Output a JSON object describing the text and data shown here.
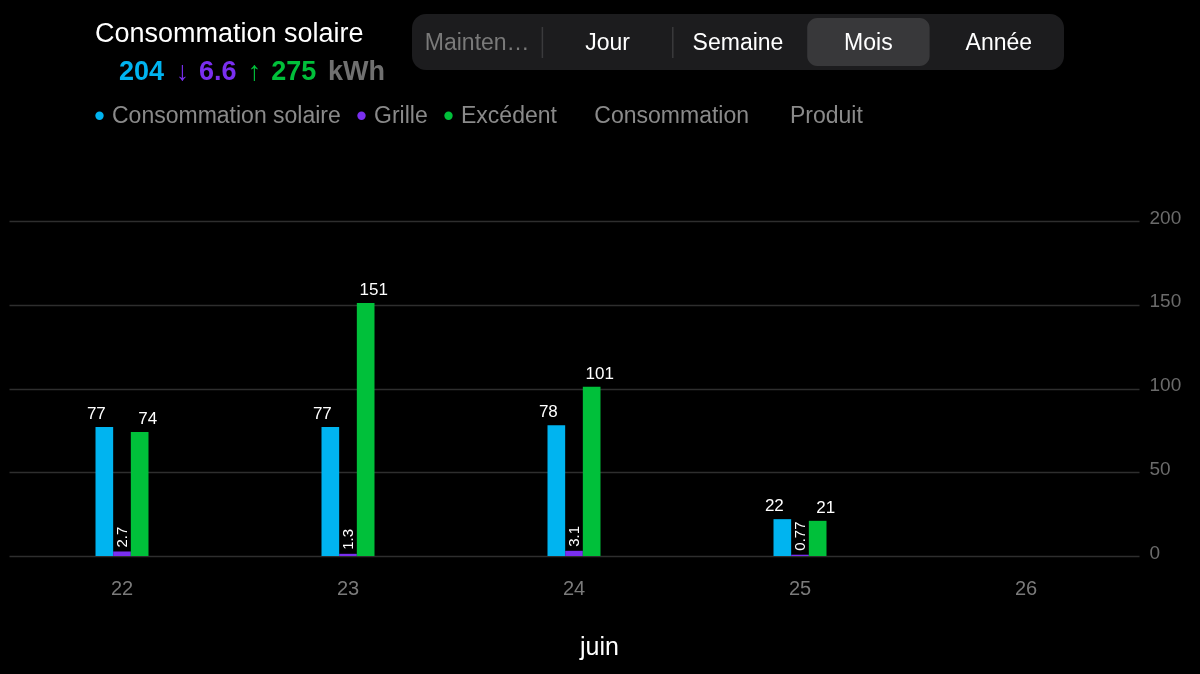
{
  "chart_data": {
    "type": "bar",
    "title": "Consommation solaire",
    "subtitle": "204 ↓ 6.6 ↑ 275 kWh",
    "xlabel": "juin",
    "categories": [
      "22",
      "23",
      "24",
      "25",
      "26"
    ],
    "series": [
      {
        "name": "Consommation solaire",
        "color": "#00b4f0",
        "values": [
          77,
          77,
          78,
          22,
          null
        ]
      },
      {
        "name": "Grille",
        "color": "#7a2ff0",
        "values": [
          2.7,
          1.3,
          3.1,
          0.77,
          null
        ]
      },
      {
        "name": "Excédent",
        "color": "#00c03a",
        "values": [
          74,
          151,
          101,
          21,
          null
        ]
      }
    ],
    "ylim": [
      0,
      200
    ],
    "yticks": [
      0,
      50,
      100,
      150,
      200
    ],
    "grid": "y",
    "legend": "top left",
    "data_labels": true,
    "annotations": [
      "Mainten…",
      "Jour",
      "Semaine",
      "Mois",
      "Année",
      "Consommation",
      "Produit"
    ]
  }
}
